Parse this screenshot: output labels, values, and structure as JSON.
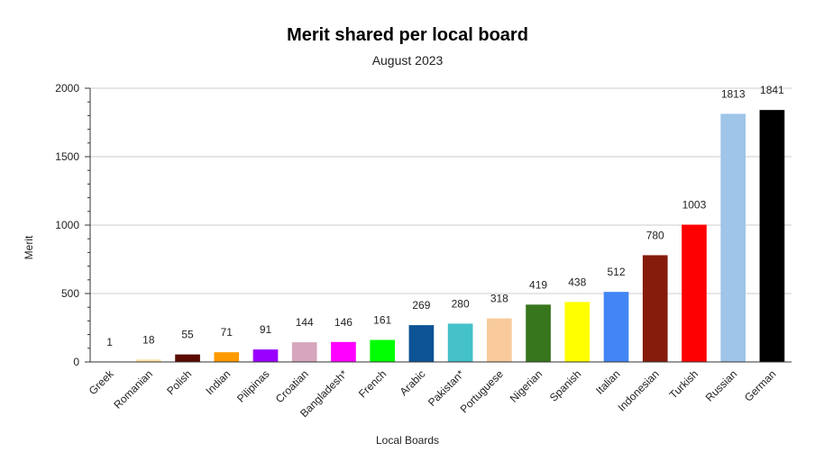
{
  "chart_data": {
    "type": "bar",
    "title": "Merit shared per local board",
    "subtitle": "August 2023",
    "xlabel": "Local Boards",
    "ylabel": "Merit",
    "ylim": [
      0,
      2000
    ],
    "yticks": [
      "0",
      "500",
      "1000",
      "1500",
      "2000"
    ],
    "grid": true,
    "categories": [
      "Greek",
      "Romanian",
      "Polish",
      "Indian",
      "Pilipinas",
      "Croatian",
      "Bangladesh*",
      "French",
      "Arabic",
      "Pakistan*",
      "Portuguese",
      "Nigerian",
      "Spanish",
      "Italian",
      "Indonesian",
      "Turkish",
      "Russian",
      "German"
    ],
    "values": [
      1,
      18,
      55,
      71,
      91,
      144,
      146,
      161,
      269,
      280,
      318,
      419,
      438,
      512,
      780,
      1003,
      1813,
      1841
    ],
    "colors": [
      "#f5d98a",
      "#fce3a6",
      "#5a0a00",
      "#ff9900",
      "#9900ff",
      "#d5a6bd",
      "#ff00ff",
      "#00ff00",
      "#0b5394",
      "#45c1c9",
      "#f9cb9c",
      "#38761d",
      "#ffff00",
      "#4285f4",
      "#851c0c",
      "#ff0000",
      "#9fc5e8",
      "#000000"
    ]
  }
}
